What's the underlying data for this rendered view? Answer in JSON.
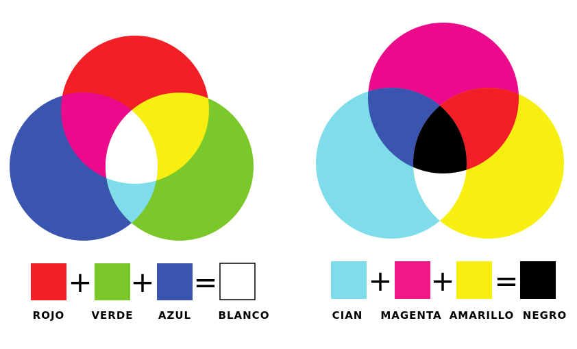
{
  "rgb_model": {
    "circles": [
      {
        "name": "rojo",
        "color": "#f21f27"
      },
      {
        "name": "verde",
        "color": "#7ac82a"
      },
      {
        "name": "azul",
        "color": "#3a55b0"
      }
    ],
    "overlaps": {
      "rojo_azul": "#ec0a8c",
      "rojo_verde": "#f6ef11",
      "verde_azul": "#7fdcea",
      "all": "#ffffff"
    },
    "equation": {
      "items": [
        {
          "label": "ROJO",
          "color": "#f21f27"
        },
        {
          "label": "VERDE",
          "color": "#7ac82a"
        },
        {
          "label": "AZUL",
          "color": "#3a55b0"
        }
      ],
      "plus_1": "+",
      "plus_2": "+",
      "equals": "=",
      "result": {
        "label": "BLANCO",
        "color": "#ffffff"
      }
    }
  },
  "cmy_model": {
    "circles": [
      {
        "name": "magenta",
        "color": "#ec0a8c"
      },
      {
        "name": "cian",
        "color": "#7fdcea"
      },
      {
        "name": "amarillo",
        "color": "#f6ef11"
      }
    ],
    "overlaps": {
      "magenta_cian": "#3a55b0",
      "magenta_amarillo": "#f21f27",
      "cian_amarillo": "#ffffff",
      "all": "#000000"
    },
    "equation": {
      "items": [
        {
          "label": "CIAN",
          "color": "#7fdcea"
        },
        {
          "label": "MAGENTA",
          "color": "#f01886"
        },
        {
          "label": "AMARILLO",
          "color": "#f6ef11"
        }
      ],
      "plus_1": "+",
      "plus_2": "+",
      "equals": "=",
      "result": {
        "label": "NEGRO",
        "color": "#000000"
      }
    }
  }
}
